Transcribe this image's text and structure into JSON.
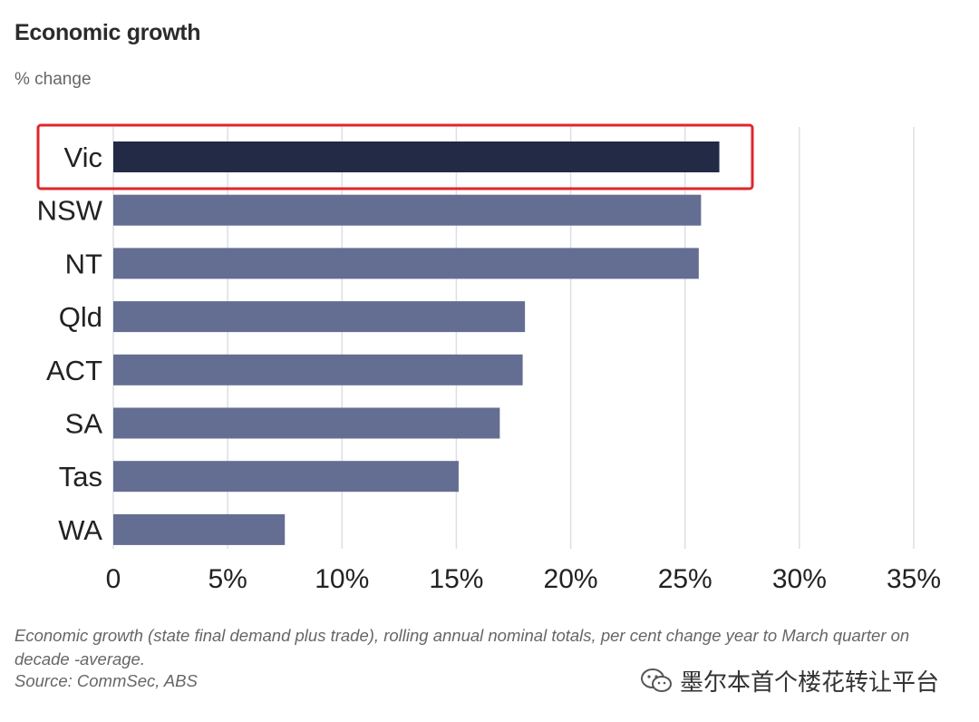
{
  "title": "Economic growth",
  "subtitle": "% change",
  "caption": "Economic growth (state final demand plus trade), rolling annual nominal totals, per cent change year to March quarter on decade -average.",
  "source": "Source: CommSec, ABS",
  "watermark": "墨尔本首个楼花转让平台",
  "watermark_icon": "wechat-icon",
  "colors": {
    "highlight_bar": "#232a45",
    "bar": "#646e92",
    "grid": "#dcdfe6",
    "highlight_box": "#e0262a"
  },
  "chart_data": {
    "type": "bar",
    "orientation": "horizontal",
    "categories": [
      "Vic",
      "NSW",
      "NT",
      "Qld",
      "ACT",
      "SA",
      "Tas",
      "WA"
    ],
    "values": [
      26.5,
      25.7,
      25.6,
      18.0,
      17.9,
      16.9,
      15.1,
      7.5
    ],
    "highlighted": "Vic",
    "title": "Economic growth",
    "subtitle": "% change",
    "xlim": [
      0,
      35
    ],
    "xticks": [
      0,
      5,
      10,
      15,
      20,
      25,
      30,
      35
    ],
    "xtick_labels": [
      "0",
      "5%",
      "10%",
      "15%",
      "20%",
      "25%",
      "30%",
      "35%"
    ],
    "grid": true
  }
}
